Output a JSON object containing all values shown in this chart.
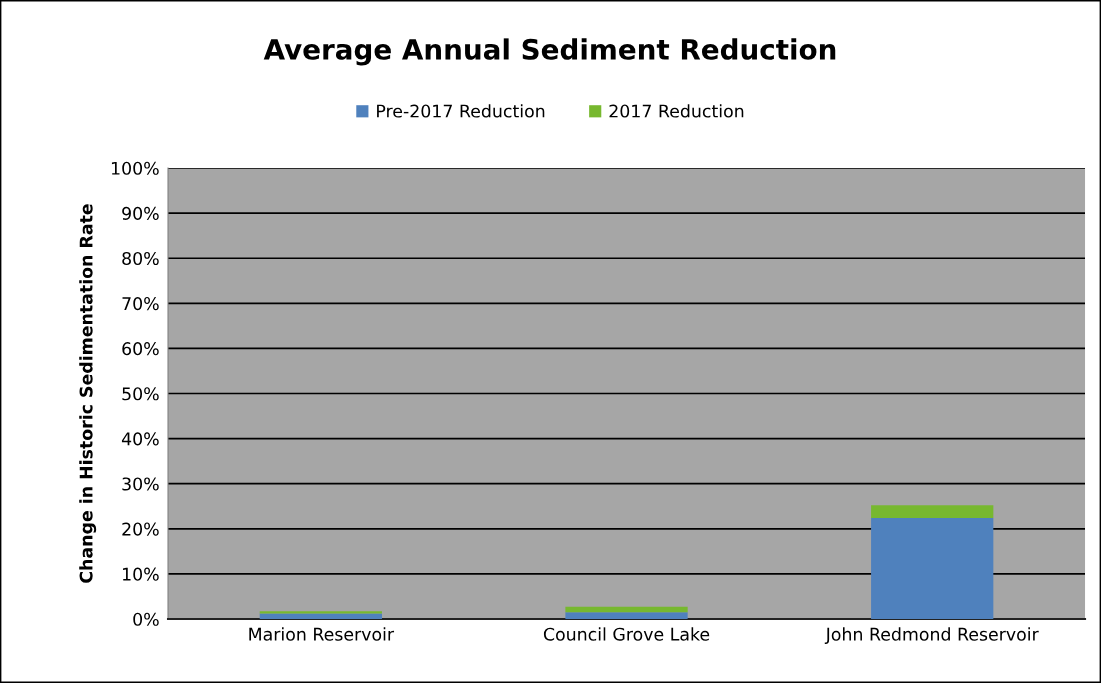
{
  "chart_data": {
    "type": "bar",
    "title": "Average Annual Sediment Reduction",
    "ylabel": "Change in Historic Sedimentation Rate",
    "categories": [
      "Marion Reservoir",
      "Council Grove Lake",
      "John Redmond Reservoir"
    ],
    "stacked": true,
    "series": [
      {
        "name": "Pre-2017 Reduction",
        "color": "#4f81bd",
        "values": [
          1.2,
          1.5,
          22.4
        ]
      },
      {
        "name": "2017 Reduction",
        "color": "#77b82f",
        "values": [
          0.5,
          1.2,
          2.8
        ]
      }
    ],
    "ylim": [
      0,
      100
    ],
    "yticks": [
      {
        "value": 0,
        "label": "0%"
      },
      {
        "value": 10,
        "label": "10%"
      },
      {
        "value": 20,
        "label": "20%"
      },
      {
        "value": 30,
        "label": "30%"
      },
      {
        "value": 40,
        "label": "40%"
      },
      {
        "value": 50,
        "label": "50%"
      },
      {
        "value": 60,
        "label": "60%"
      },
      {
        "value": 70,
        "label": "70%"
      },
      {
        "value": 80,
        "label": "80%"
      },
      {
        "value": 90,
        "label": "90%"
      },
      {
        "value": 100,
        "label": "100%"
      }
    ],
    "grid": "y",
    "legend": "top"
  }
}
